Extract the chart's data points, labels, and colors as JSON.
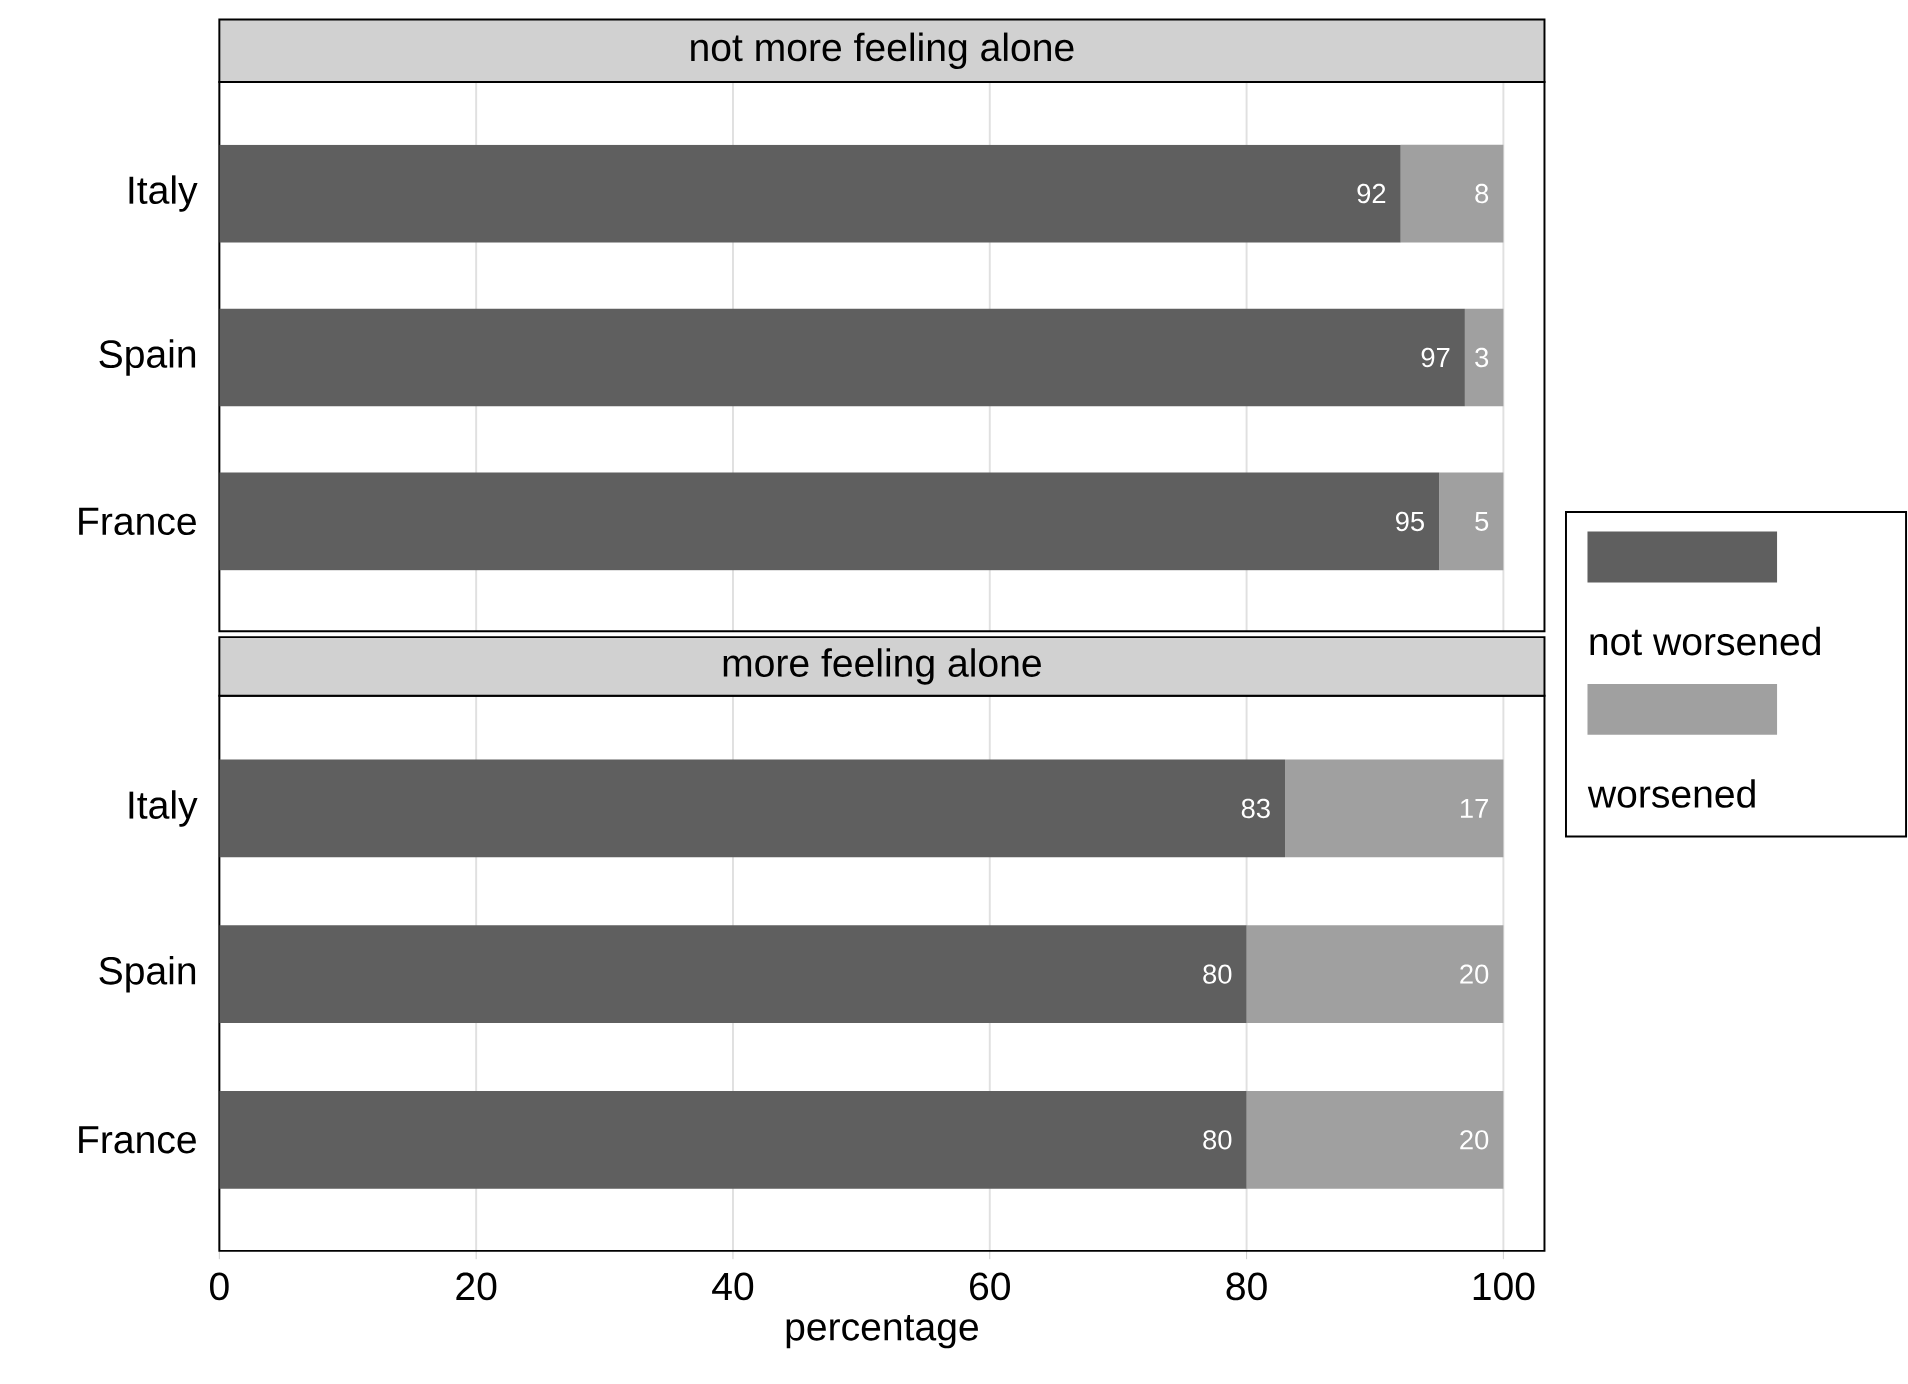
{
  "chart_data": [
    {
      "type": "bar",
      "orientation": "horizontal",
      "stacked": true,
      "title": "not more feeling alone",
      "categories": [
        "Italy",
        "Spain",
        "France"
      ],
      "series": [
        {
          "color": "#5f5f5f",
          "values": [
            92,
            97,
            95
          ]
        },
        {
          "color": "#a0a0a0",
          "values": [
            8,
            3,
            5
          ]
        }
      ],
      "xlim": [
        0,
        103.2
      ],
      "xticks": [
        0,
        20,
        40,
        60,
        80,
        100
      ],
      "grid": "x",
      "data_labels": true,
      "tick_labels": "y"
    },
    {
      "type": "bar",
      "orientation": "horizontal",
      "stacked": true,
      "title": "more feeling alone",
      "xlabel": "percentage",
      "categories": [
        "Italy",
        "Spain",
        "France"
      ],
      "series": [
        {
          "name": "not worsened",
          "color": "#5f5f5f",
          "values": [
            83,
            80,
            80
          ]
        },
        {
          "name": "worsened",
          "color": "#a0a0a0",
          "values": [
            17,
            20,
            20
          ]
        }
      ],
      "xlim": [
        0,
        103.2
      ],
      "xticks": [
        0,
        20,
        40,
        60,
        80,
        100
      ],
      "grid": "x",
      "data_labels": true,
      "legend": "right"
    }
  ]
}
